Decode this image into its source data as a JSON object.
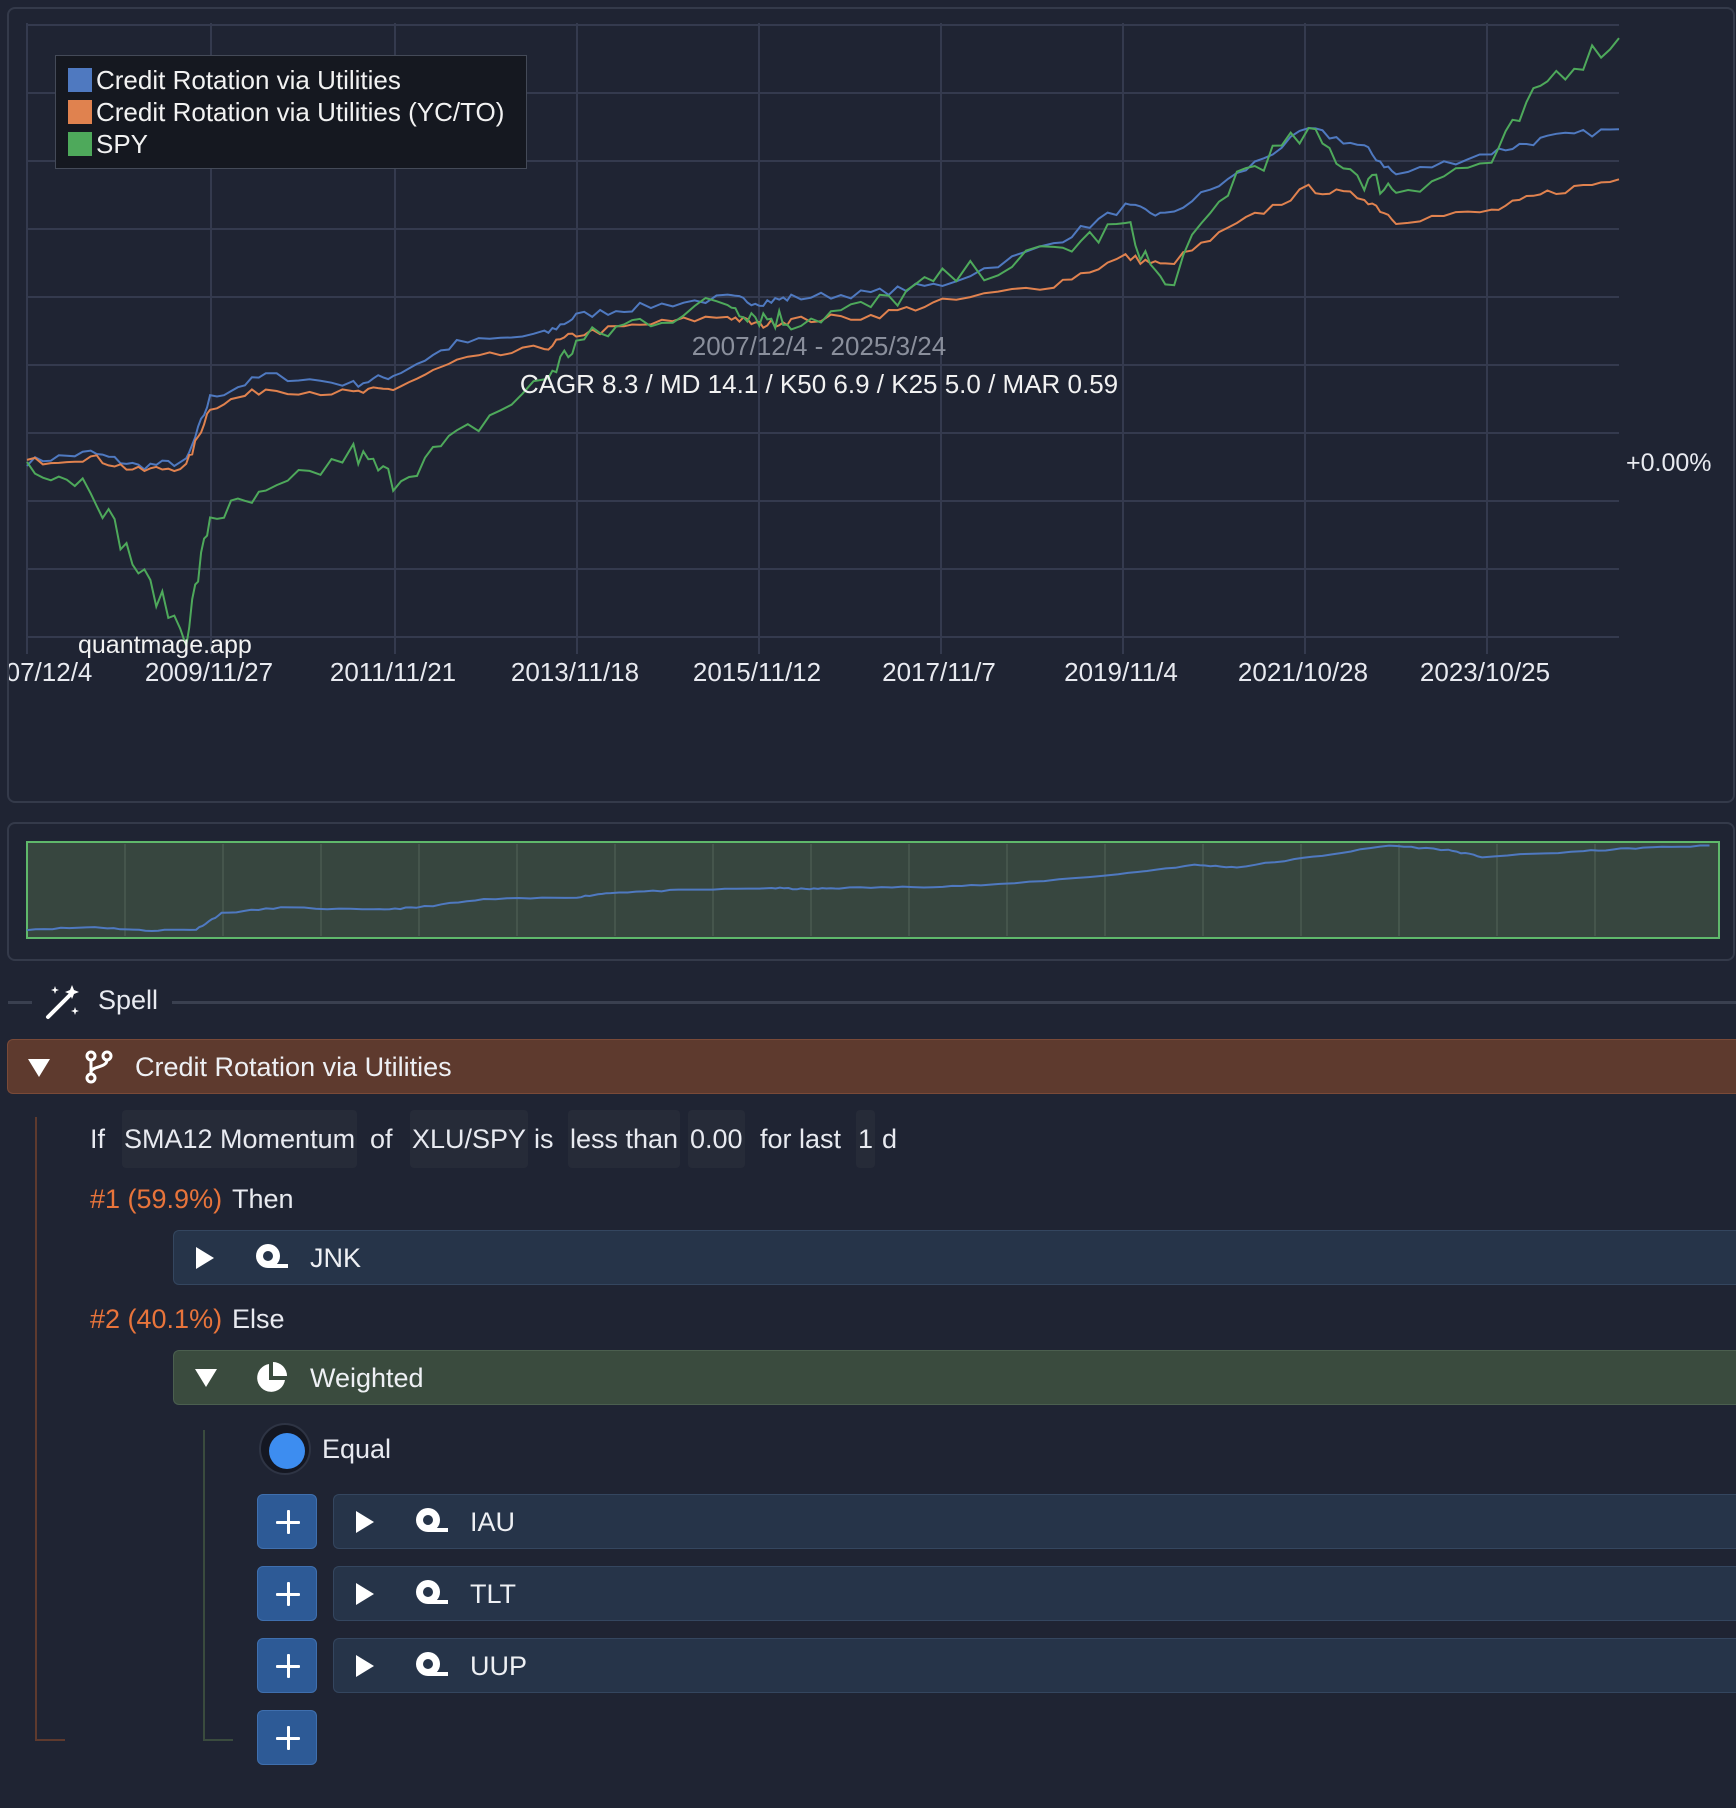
{
  "chart": {
    "title_range": "2007/12/4 - 2025/3/24",
    "stats": "CAGR 8.3 / MD 14.1 / K50 6.9 / K25 5.0 / MAR 0.59",
    "watermark": "quantmage.app",
    "y_label_zero": "+0.00%",
    "x_ticks": [
      "07/12/4",
      "2009/11/27",
      "2011/11/21",
      "2013/11/18",
      "2015/11/12",
      "2017/11/7",
      "2019/11/4",
      "2021/10/28",
      "2023/10/25"
    ],
    "legend": [
      {
        "name": "Credit Rotation via Utilities",
        "color": "#4f79c0"
      },
      {
        "name": "Credit Rotation via Utilities (YC/TO)",
        "color": "#e0824f"
      },
      {
        "name": "SPY",
        "color": "#4ea95b"
      }
    ],
    "colors": {
      "grid": "#343a4e",
      "bg": "#1f2433"
    }
  },
  "chart_data": {
    "type": "line",
    "x": [
      "2007/12/4",
      "2008/6",
      "2008/11",
      "2009/3",
      "2009/11/27",
      "2010/6",
      "2011/4",
      "2011/11/21",
      "2012/6",
      "2013/5",
      "2013/11/18",
      "2014/6",
      "2015/5",
      "2015/11/12",
      "2016/2",
      "2016/11",
      "2017/11/7",
      "2018/12",
      "2019/11/4",
      "2020/3",
      "2020/12",
      "2021/10/28",
      "2022/6",
      "2022/10",
      "2023/10/25",
      "2024/6",
      "2025/3/24"
    ],
    "series": [
      {
        "name": "Credit Rotation via Utilities",
        "color": "#4f79c0",
        "values": [
          0,
          2,
          -1,
          0,
          14,
          19,
          17,
          19,
          26,
          28,
          32,
          34,
          36,
          35,
          36,
          37,
          39,
          48,
          56,
          54,
          63,
          73,
          69,
          63,
          68,
          71,
          73
        ]
      },
      {
        "name": "Credit Rotation via Utilities (YC/TO)",
        "color": "#e0824f",
        "values": [
          0,
          1,
          -2,
          -1,
          12,
          16,
          15,
          16,
          22,
          25,
          28,
          30,
          32,
          30,
          31,
          32,
          35,
          39,
          45,
          43,
          52,
          60,
          58,
          53,
          55,
          59,
          62
        ]
      },
      {
        "name": "SPY",
        "color": "#4ea95b",
        "values": [
          0,
          -5,
          -24,
          -38,
          -12,
          -8,
          2,
          -4,
          5,
          18,
          26,
          31,
          35,
          32,
          31,
          34,
          40,
          46,
          52,
          38,
          63,
          72,
          62,
          60,
          66,
          84,
          93
        ]
      }
    ],
    "ylim": [
      -40,
      95
    ],
    "zero_label": "+0.00%"
  },
  "navigator": {
    "color_line": "#4f79c0",
    "color_fill": "#37463f",
    "color_border": "#5fb86b"
  },
  "spell": {
    "label": "Spell",
    "icon": "magic-wand-icon"
  },
  "root": {
    "label": "Credit Rotation via Utilities",
    "icon": "branch-icon"
  },
  "condition": {
    "if": "If",
    "indicator": "SMA12 Momentum",
    "of": "of",
    "ticker": "XLU/SPY",
    "is": "is",
    "comparator": "less than",
    "value": "0.00",
    "for_last": "for last",
    "days": "1",
    "unit": "d"
  },
  "branch1": {
    "pct": "#1 (59.9%)",
    "label": "Then",
    "asset": "JNK"
  },
  "branch2": {
    "pct": "#2 (40.1%)",
    "label": "Else",
    "weighted": "Weighted",
    "radio_label": "Equal",
    "assets": [
      "IAU",
      "TLT",
      "UUP"
    ]
  }
}
